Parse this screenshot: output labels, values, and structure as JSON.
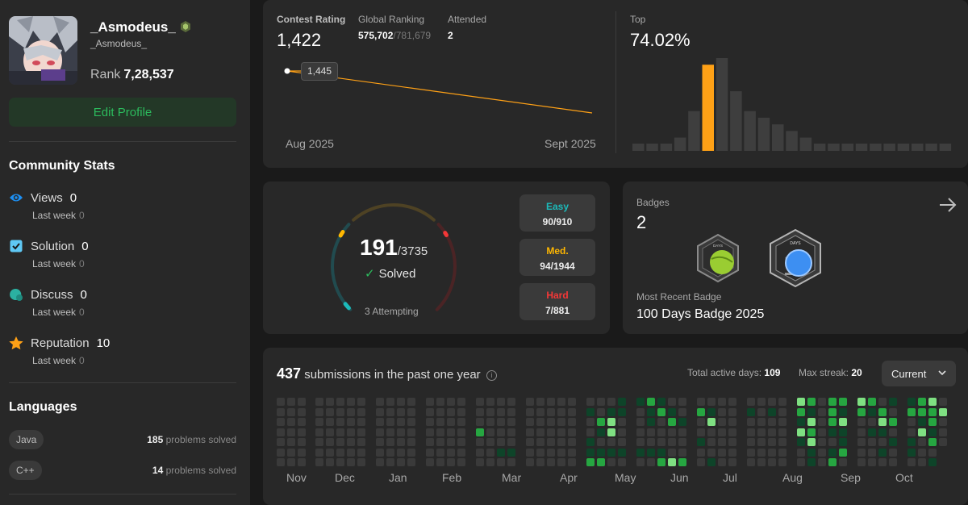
{
  "profile": {
    "username": "_Asmodeus_",
    "handle": "_Asmodeus_",
    "rank_label": "Rank",
    "rank_value": "7,28,537",
    "edit_button": "Edit Profile"
  },
  "community": {
    "title": "Community Stats",
    "stats": [
      {
        "label": "Views",
        "value": "0",
        "sub": "Last week",
        "sub_value": "0",
        "icon": "eye-icon",
        "color": "#1d8ff2"
      },
      {
        "label": "Solution",
        "value": "0",
        "sub": "Last week",
        "sub_value": "0",
        "icon": "solution-icon",
        "color": "#5fc8f5"
      },
      {
        "label": "Discuss",
        "value": "0",
        "sub": "Last week",
        "sub_value": "0",
        "icon": "discuss-icon",
        "color": "#2bb1a1"
      },
      {
        "label": "Reputation",
        "value": "10",
        "sub": "Last week",
        "sub_value": "0",
        "icon": "star-icon",
        "color": "#ffa116"
      }
    ]
  },
  "languages": {
    "title": "Languages",
    "items": [
      {
        "name": "Java",
        "count": "185",
        "suffix": "problems solved"
      },
      {
        "name": "C++",
        "count": "14",
        "suffix": "problems solved"
      }
    ]
  },
  "contest": {
    "rating_label": "Contest Rating",
    "rating_value": "1,422",
    "global_label": "Global Ranking",
    "global_value": "575,702",
    "global_total": "/781,679",
    "attended_label": "Attended",
    "attended_value": "2",
    "tooltip": "1,445",
    "x_start": "Aug 2025",
    "x_end": "Sept 2025",
    "top_label": "Top",
    "top_value": "74.02%",
    "line_color": "#ffa116"
  },
  "chart_data": {
    "type": "bar",
    "title": "",
    "values": [
      1,
      1,
      1,
      2,
      6,
      13,
      14,
      9,
      6,
      5,
      4,
      3,
      2,
      1,
      1,
      1,
      1,
      1,
      1,
      1,
      1,
      1,
      1
    ],
    "highlight_index": 5,
    "highlight_color": "#ffa116",
    "bar_color": "#3e3e3e"
  },
  "solved": {
    "count": "191",
    "total": "/3735",
    "label": "Solved",
    "attempting": "3 Attempting",
    "difficulty": [
      {
        "label": "Easy",
        "value": "90/910",
        "color": "#1cbaba"
      },
      {
        "label": "Med.",
        "value": "94/1944",
        "color": "#ffb700"
      },
      {
        "label": "Hard",
        "value": "7/881",
        "color": "#f63737"
      }
    ]
  },
  "badges": {
    "label": "Badges",
    "count": "2",
    "recent_label": "Most Recent Badge",
    "recent_value": "100 Days Badge 2025",
    "badge1_text": "DAYS",
    "badge2_text": "DAYS"
  },
  "submissions": {
    "count": "437",
    "text": "submissions in the past one year",
    "active_label": "Total active days:",
    "active_value": "109",
    "streak_label": "Max streak:",
    "streak_value": "20",
    "select_value": "Current",
    "months": [
      "Nov",
      "Dec",
      "Jan",
      "Feb",
      "Mar",
      "Apr",
      "May",
      "Jun",
      "Jul",
      "Aug",
      "Sep",
      "Oct"
    ]
  }
}
